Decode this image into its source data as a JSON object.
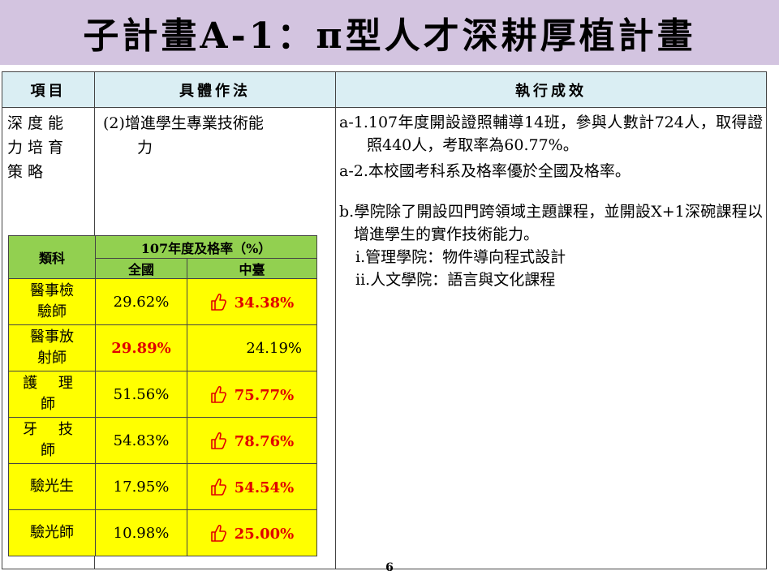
{
  "slide": {
    "title": "子計畫A-1：π型人才深耕厚植計畫",
    "page_number": "6"
  },
  "table": {
    "headers": [
      "項目",
      "具體作法",
      "執行成效"
    ],
    "category": [
      "深度能",
      "力培育",
      "策略"
    ],
    "method_line1": "(2)增進學生專業技術能",
    "method_line2": "力",
    "results": {
      "a1": "a-1.107年度開設證照輔導14班，參與人數計724人，取得證照440人，考取率為60.77%。",
      "a2": "a-2.本校國考科系及格率優於全國及格率。",
      "b": "b.學院除了開設四門跨領域主題課程，並開設X+1深碗課程以增進學生的實作技術能力。",
      "i": "i.管理學院：物件導向程式設計",
      "ii": "ii.人文學院：語言與文化課程"
    }
  },
  "stats": {
    "col_category": "類科",
    "col_rate": "107年度及格率（%）",
    "col_national": "全國",
    "col_school": "中臺",
    "highlight_color": "#ffff00",
    "header_color": "#92d050",
    "better_color": "#e00000",
    "rows": [
      {
        "name1": "醫事檢",
        "name2": "驗師",
        "national": "29.62%",
        "school": "34.38%",
        "better": "school"
      },
      {
        "name1": "醫事放",
        "name2": "射師",
        "national": "29.89%",
        "school": "24.19%",
        "better": "national"
      },
      {
        "name1": "護 理",
        "name2": "師",
        "national": "51.56%",
        "school": "75.77%",
        "better": "school"
      },
      {
        "name1": "牙 技",
        "name2": "師",
        "national": "54.83%",
        "school": "78.76%",
        "better": "school"
      },
      {
        "name1": "驗光生",
        "name2": "",
        "national": "17.95%",
        "school": "54.54%",
        "better": "school"
      },
      {
        "name1": "驗光師",
        "name2": "",
        "national": "10.98%",
        "school": "25.00%",
        "better": "school"
      }
    ],
    "better_icon": "thumbs-up-icon"
  }
}
